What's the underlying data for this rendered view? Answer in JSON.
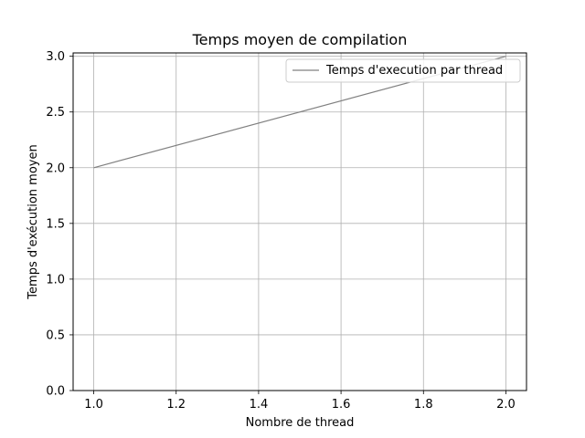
{
  "chart_data": {
    "type": "line",
    "title": "Temps moyen de compilation",
    "xlabel": "Nombre de thread",
    "ylabel": "Temps d'exécution moyen",
    "xlim": [
      0.95,
      2.05
    ],
    "ylim": [
      0.0,
      3.03
    ],
    "x_ticks": [
      1.0,
      1.2,
      1.4,
      1.6,
      1.8,
      2.0
    ],
    "x_tick_labels": [
      "1.0",
      "1.2",
      "1.4",
      "1.6",
      "1.8",
      "2.0"
    ],
    "y_ticks": [
      0.0,
      0.5,
      1.0,
      1.5,
      2.0,
      2.5,
      3.0
    ],
    "y_tick_labels": [
      "0.0",
      "0.5",
      "1.0",
      "1.5",
      "2.0",
      "2.5",
      "3.0"
    ],
    "grid": true,
    "legend_position": "top-right",
    "series": [
      {
        "name": "Temps d'execution par thread",
        "color": "#808080",
        "x": [
          1.0,
          2.0
        ],
        "y": [
          2.0,
          3.0
        ]
      }
    ]
  }
}
